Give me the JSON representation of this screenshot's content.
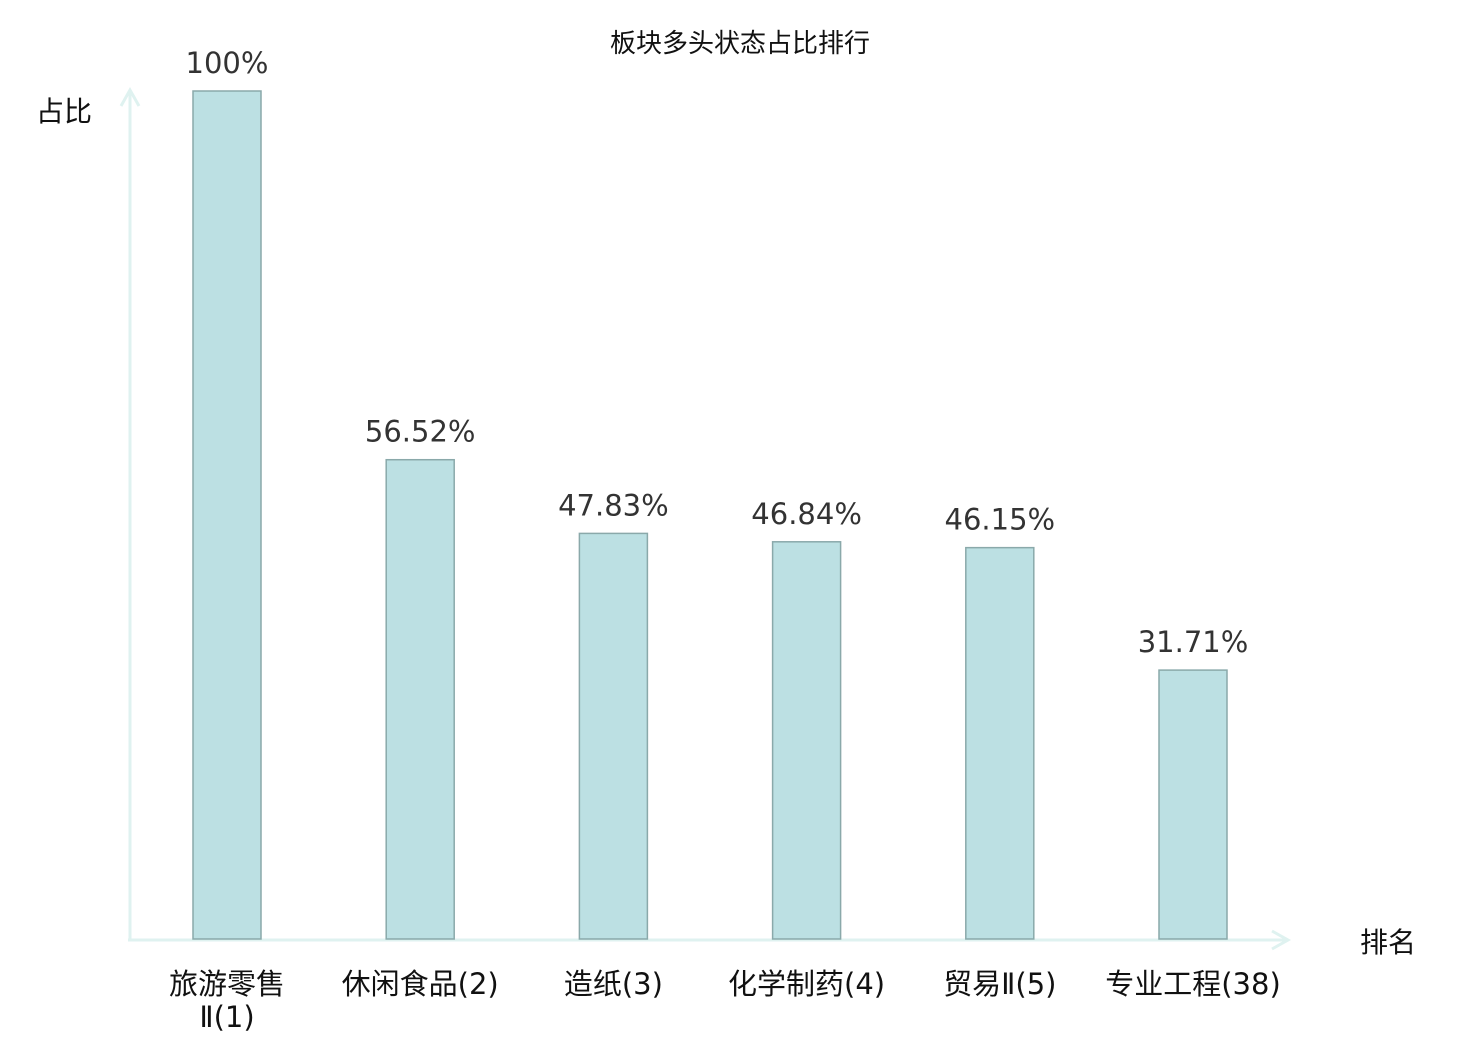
{
  "chart_data": {
    "type": "bar",
    "title": "板块多头状态占比排行",
    "ylabel": "占比",
    "xlabel": "排名",
    "categories": [
      "旅游零售Ⅱ(1)",
      "休闲食品(2)",
      "造纸(3)",
      "化学制药(4)",
      "贸易Ⅱ(5)",
      "专业工程(38)"
    ],
    "category_lines": [
      [
        "旅游零售",
        "Ⅱ(1)"
      ],
      [
        "休闲食品(2)"
      ],
      [
        "造纸(3)"
      ],
      [
        "化学制药(4)"
      ],
      [
        "贸易Ⅱ(5)"
      ],
      [
        "专业工程(38)"
      ]
    ],
    "values": [
      100,
      56.52,
      47.83,
      46.84,
      46.15,
      31.71
    ],
    "data_labels": [
      "100%",
      "56.52%",
      "47.83%",
      "46.84%",
      "46.15%",
      "31.71%"
    ],
    "highlight_index": 5,
    "ylim": [
      0,
      100
    ],
    "grid": false,
    "colors": {
      "bar_fill": "#bce0e3",
      "bar_stroke": "#8aa9aa",
      "axis": "#dff2f0",
      "highlight_label": "#ee1111",
      "label": "#111111"
    }
  }
}
